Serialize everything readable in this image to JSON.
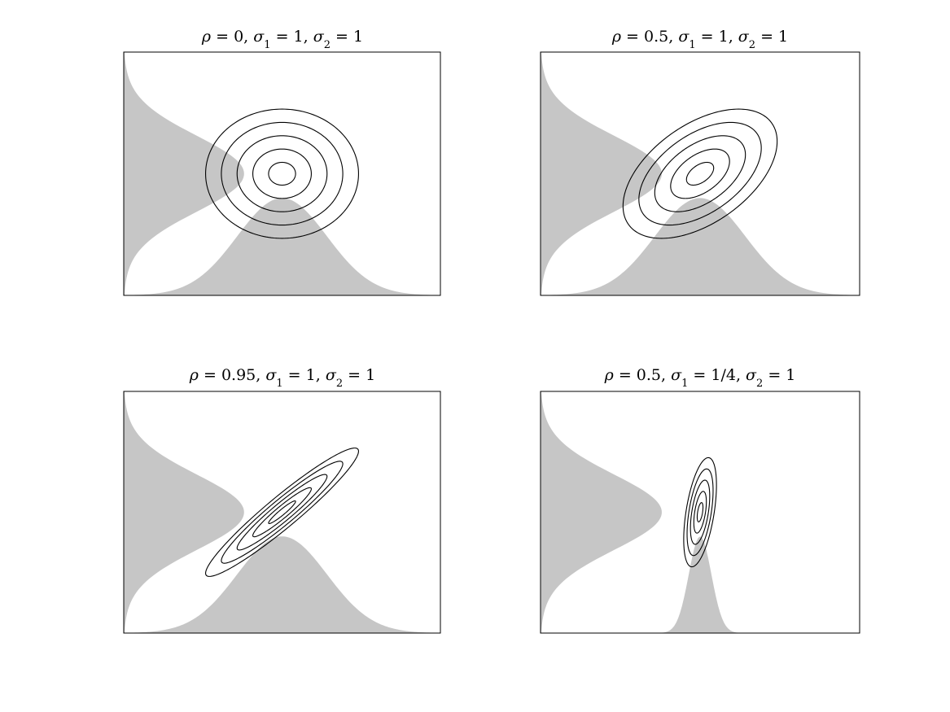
{
  "chart_data": [
    {
      "type": "contour",
      "title": "ρ = 0, σ₁ = 1, σ₂ = 1",
      "title_parts": {
        "rho": "0",
        "sigma1": "1",
        "sigma2": "1"
      },
      "rho": 0,
      "sigma1": 1,
      "sigma2": 1,
      "contour_levels": 5,
      "marginals": [
        "vertical-left",
        "horizontal-bottom"
      ],
      "shade_color": "#c6c6c6",
      "axes_visible": false
    },
    {
      "type": "contour",
      "title": "ρ = 0.5, σ₁ = 1, σ₂ = 1",
      "title_parts": {
        "rho": "0.5",
        "sigma1": "1",
        "sigma2": "1"
      },
      "rho": 0.5,
      "sigma1": 1,
      "sigma2": 1,
      "contour_levels": 5,
      "marginals": [
        "vertical-left",
        "horizontal-bottom"
      ],
      "shade_color": "#c6c6c6",
      "axes_visible": false
    },
    {
      "type": "contour",
      "title": "ρ = 0.95, σ₁ = 1, σ₂ = 1",
      "title_parts": {
        "rho": "0.95",
        "sigma1": "1",
        "sigma2": "1"
      },
      "rho": 0.95,
      "sigma1": 1,
      "sigma2": 1,
      "contour_levels": 5,
      "marginals": [
        "vertical-left",
        "horizontal-bottom"
      ],
      "shade_color": "#c6c6c6",
      "axes_visible": false
    },
    {
      "type": "contour",
      "title": "ρ = 0.5, σ₁ = 1/4, σ₂ = 1",
      "title_parts": {
        "rho": "0.5",
        "sigma1": "1/4",
        "sigma2": "1"
      },
      "rho": 0.5,
      "sigma1": 0.25,
      "sigma2": 1,
      "contour_levels": 5,
      "marginals": [
        "vertical-left",
        "horizontal-bottom"
      ],
      "shade_color": "#c6c6c6",
      "axes_visible": false
    }
  ]
}
